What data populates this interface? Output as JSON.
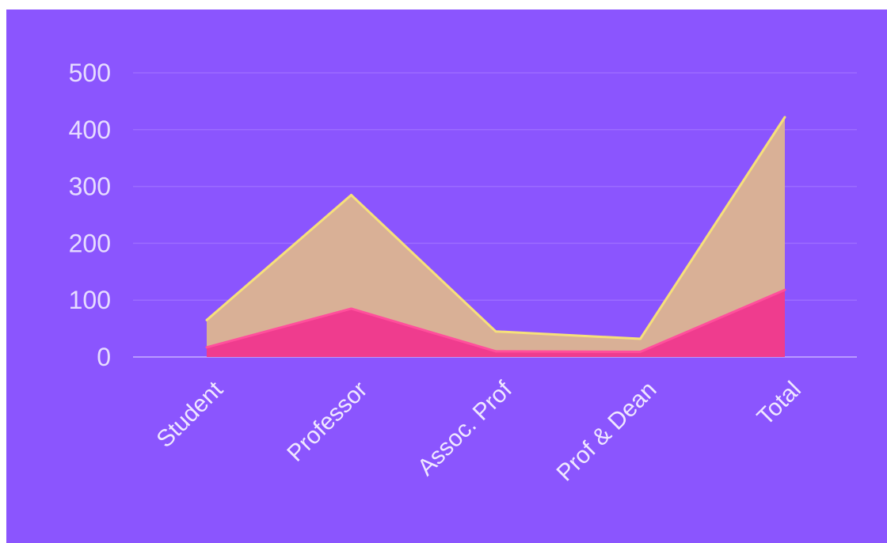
{
  "chart_data": {
    "type": "area",
    "stacked": false,
    "categories": [
      "Student",
      "Professor",
      "Assoc. Prof",
      "Prof & Dean",
      "Total"
    ],
    "series": [
      {
        "values": [
          65,
          285,
          45,
          32,
          422
        ],
        "color": "#d9b096",
        "line_color": "#f6e07a"
      },
      {
        "values": [
          17,
          85,
          10,
          9,
          118
        ],
        "color": "#ef3c8e",
        "line_color": "#ff4f9c"
      }
    ],
    "y_ticks": [
      0,
      100,
      200,
      300,
      400,
      500
    ],
    "ylim": [
      0,
      500
    ],
    "grid": true,
    "legend": false,
    "title": "",
    "xlabel": "",
    "ylabel": "",
    "colors": {
      "background": "#8b55fe",
      "gridline": "#9c6cff",
      "tick_text": "#e6dcff"
    }
  }
}
